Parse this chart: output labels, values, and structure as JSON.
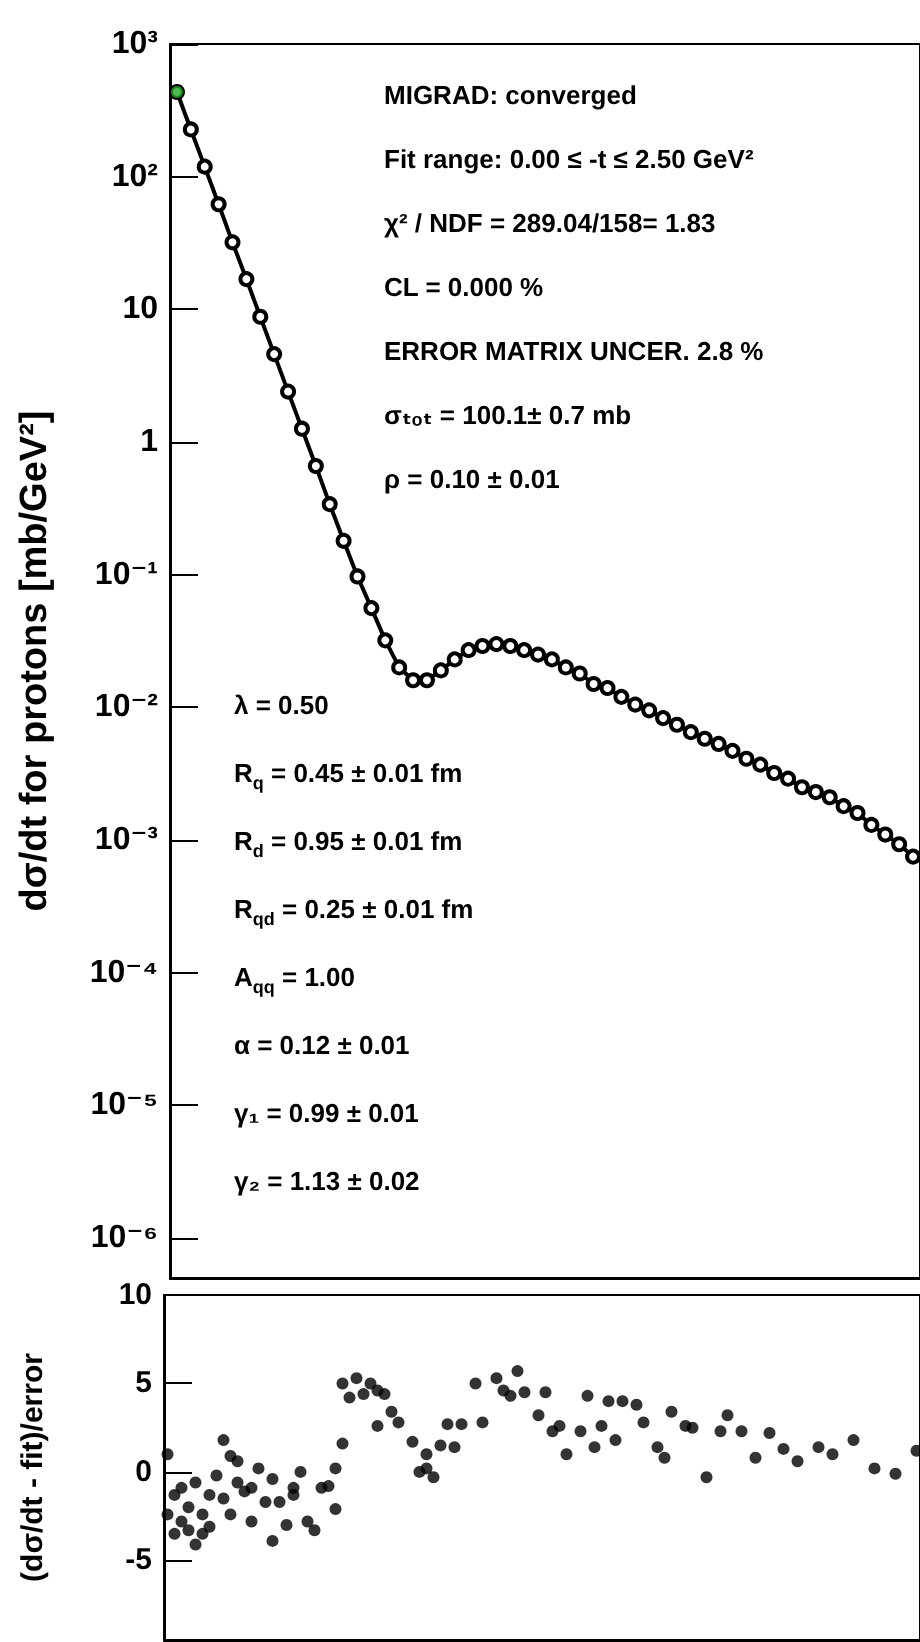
{
  "chart_data": [
    {
      "type": "line",
      "ylabel": "dσ/dt for protons [mb/GeV²]",
      "log": "y",
      "ylim": [
        5e-07,
        1000
      ],
      "yticks": [
        {
          "value": 1e-06,
          "label": "10⁻⁶"
        },
        {
          "value": 1e-05,
          "label": "10⁻⁵"
        },
        {
          "value": 0.0001,
          "label": "10⁻⁴"
        },
        {
          "value": 0.001,
          "label": "10⁻³"
        },
        {
          "value": 0.01,
          "label": "10⁻²"
        },
        {
          "value": 0.1,
          "label": "10⁻¹"
        },
        1,
        10,
        {
          "value": 100,
          "label": "10²"
        },
        {
          "value": 1000,
          "label": "10³"
        }
      ],
      "tick_labels": "y",
      "grid": false,
      "marker": "circle",
      "categories": [
        null,
        null,
        null,
        null,
        null,
        null,
        null,
        null,
        null,
        null,
        null,
        null,
        null,
        null,
        null,
        null,
        null,
        null,
        null,
        null,
        null,
        null,
        null,
        null,
        null,
        null,
        null,
        null,
        null,
        null,
        null,
        null,
        null,
        null,
        null,
        null,
        null,
        null,
        null,
        null,
        null,
        null,
        null,
        null,
        null,
        null,
        null,
        null,
        null,
        null,
        null,
        null,
        null,
        null
      ],
      "series": [
        {
          "color": "#000000",
          "values": [
            435,
            227,
            119,
            62,
            32,
            16.9,
            8.8,
            4.6,
            2.4,
            1.26,
            0.66,
            0.34,
            0.18,
            0.097,
            0.056,
            0.032,
            0.02,
            0.016,
            0.016,
            0.019,
            0.023,
            0.027,
            0.029,
            0.03,
            0.029,
            0.027,
            0.025,
            0.023,
            0.02,
            0.018,
            0.015,
            0.014,
            0.012,
            0.0105,
            0.0095,
            0.0083,
            0.0074,
            0.0065,
            0.0058,
            0.0053,
            0.0047,
            0.0041,
            0.0037,
            0.0032,
            0.0029,
            0.0025,
            0.0023,
            0.0021,
            0.0018,
            0.0016,
            0.0013,
            0.0011,
            0.00093,
            0.00075
          ]
        },
        {
          "type": "scatter",
          "color": "#22aa22",
          "values": [
            435,
            null,
            null,
            null,
            null,
            null,
            null,
            null,
            null,
            null,
            null,
            null,
            null,
            null,
            null,
            null,
            null,
            null,
            null,
            null,
            null,
            null,
            null,
            null,
            null,
            null,
            null,
            null,
            null,
            null,
            null,
            null,
            null,
            null,
            null,
            null,
            null,
            null,
            null,
            null,
            null,
            null,
            null,
            null,
            null,
            null,
            null,
            null,
            null,
            null,
            null,
            null,
            null,
            null
          ]
        }
      ],
      "annotations": [
        "MIGRAD: converged",
        "Fit range: 0.00 ≤ -t ≤ 2.50 GeV²",
        "χ² / NDF = 289.04/158= 1.83",
        "CL = 0.000 %",
        "ERROR MATRIX UNCER. 2.8 %",
        "σₜₒₜ = 100.1±  0.7 mb",
        "ρ = 0.10  ± 0.01",
        "λ = 0.50",
        "R$_{q}$ = 0.45 ± 0.01 fm",
        "R$_{d}$ = 0.95 ± 0.01 fm",
        "R$_{qd}$ = 0.25 ± 0.01 fm",
        "A$_{qq}$ = 1.00",
        "α = 0.12 ± 0.01",
        "γ₁ = 0.99 ± 0.01",
        "γ₂ = 1.13 ± 0.02"
      ]
    },
    {
      "type": "scatter",
      "ylabel": "(dσ/dt - fit)/error",
      "ylim": [
        -9.5,
        10
      ],
      "yticks": [
        -5,
        0,
        5,
        10
      ],
      "tick_labels": "y",
      "grid": false,
      "marker": "circle",
      "categories": [
        null,
        null,
        null,
        null,
        null,
        null,
        null,
        null,
        null,
        null,
        null,
        null,
        null,
        null,
        null,
        null,
        null,
        null,
        null,
        null,
        null,
        null,
        null,
        null,
        null,
        null,
        null,
        null,
        null,
        null,
        null,
        null,
        null,
        null,
        null,
        null,
        null,
        null,
        null,
        null,
        null,
        null,
        null,
        null,
        null,
        null,
        null,
        null,
        null,
        null,
        null,
        null,
        null,
        null,
        null,
        null,
        null,
        null,
        null,
        null,
        null,
        null,
        null,
        null,
        null,
        null,
        null,
        null,
        null,
        null,
        null,
        null,
        null,
        null,
        null,
        null,
        null,
        null,
        null,
        null,
        null,
        null,
        null,
        null,
        null,
        null,
        null,
        null,
        null,
        null,
        null,
        null,
        null,
        null,
        null,
        null,
        null,
        null,
        null,
        null,
        null,
        null,
        null,
        null,
        null,
        null,
        null,
        null
      ],
      "series": [
        {
          "color": "#000000",
          "values": [
            1.0,
            -3.5,
            -2.8,
            -3.3,
            -4.1,
            -2.4,
            -1.3,
            -0.2,
            1.8,
            0.9,
            -0.6,
            -1.1,
            -2.8,
            0.2,
            -1.7,
            -3.9,
            -1.7,
            -3.0,
            -0.9,
            0,
            -2.8,
            -3.3,
            -0.9,
            -0.8,
            -2.1,
            1.6,
            4.2,
            5.3,
            4.4,
            5.0,
            4.6,
            4.4,
            3.4,
            2.8,
            null,
            1.7,
            0,
            0.2,
            -0.3,
            1.5,
            2.7,
            1.4,
            2.7,
            null,
            5.0,
            2.8,
            null,
            5.3,
            4.6,
            4.3,
            5.7,
            4.5,
            null,
            3.2,
            4.5,
            2.3,
            2.6,
            1.0,
            null,
            2.3,
            4.3,
            1.4,
            2.6,
            4.0,
            1.8,
            4.0,
            null,
            3.8,
            2.8,
            null,
            1.4,
            0.8,
            3.4,
            null,
            2.6,
            2.5,
            null,
            -0.3,
            null,
            2.3,
            3.2,
            null,
            2.3,
            null,
            0.8,
            null,
            2.2,
            null,
            1.3,
            null,
            0.6,
            null,
            null,
            1.4,
            null,
            1.0,
            null,
            null,
            1.8,
            null,
            null,
            0.2,
            null,
            null,
            -0.1,
            null,
            null,
            1.2
          ]
        },
        {
          "color": "#000000",
          "values": [
            -2.4,
            -1.3,
            -0.9,
            -2.0,
            -0.6,
            -3.5,
            -3.1,
            null,
            -1.5,
            -2.4,
            0.6,
            null,
            -0.9,
            null,
            null,
            -0.4,
            null,
            null,
            -1.3,
            null,
            null,
            null,
            null,
            null,
            0.2,
            5.0,
            null,
            null,
            null,
            null,
            2.6,
            null,
            null,
            null,
            null,
            null,
            null,
            1.0,
            null,
            null,
            null,
            null,
            null,
            null,
            null,
            null,
            null,
            null,
            null,
            null,
            null,
            null,
            null,
            null,
            null,
            null,
            null,
            null,
            null,
            null,
            null,
            null,
            null,
            null,
            null,
            null,
            null,
            null,
            null,
            null,
            null,
            null,
            null,
            null,
            null,
            null,
            null,
            null,
            null,
            null,
            null,
            null,
            null,
            null,
            null,
            null,
            null,
            null,
            null,
            null,
            null,
            null,
            null,
            null,
            null,
            null,
            null,
            null,
            null,
            null,
            null,
            null,
            null,
            null,
            null,
            null,
            null,
            null
          ]
        }
      ]
    }
  ]
}
